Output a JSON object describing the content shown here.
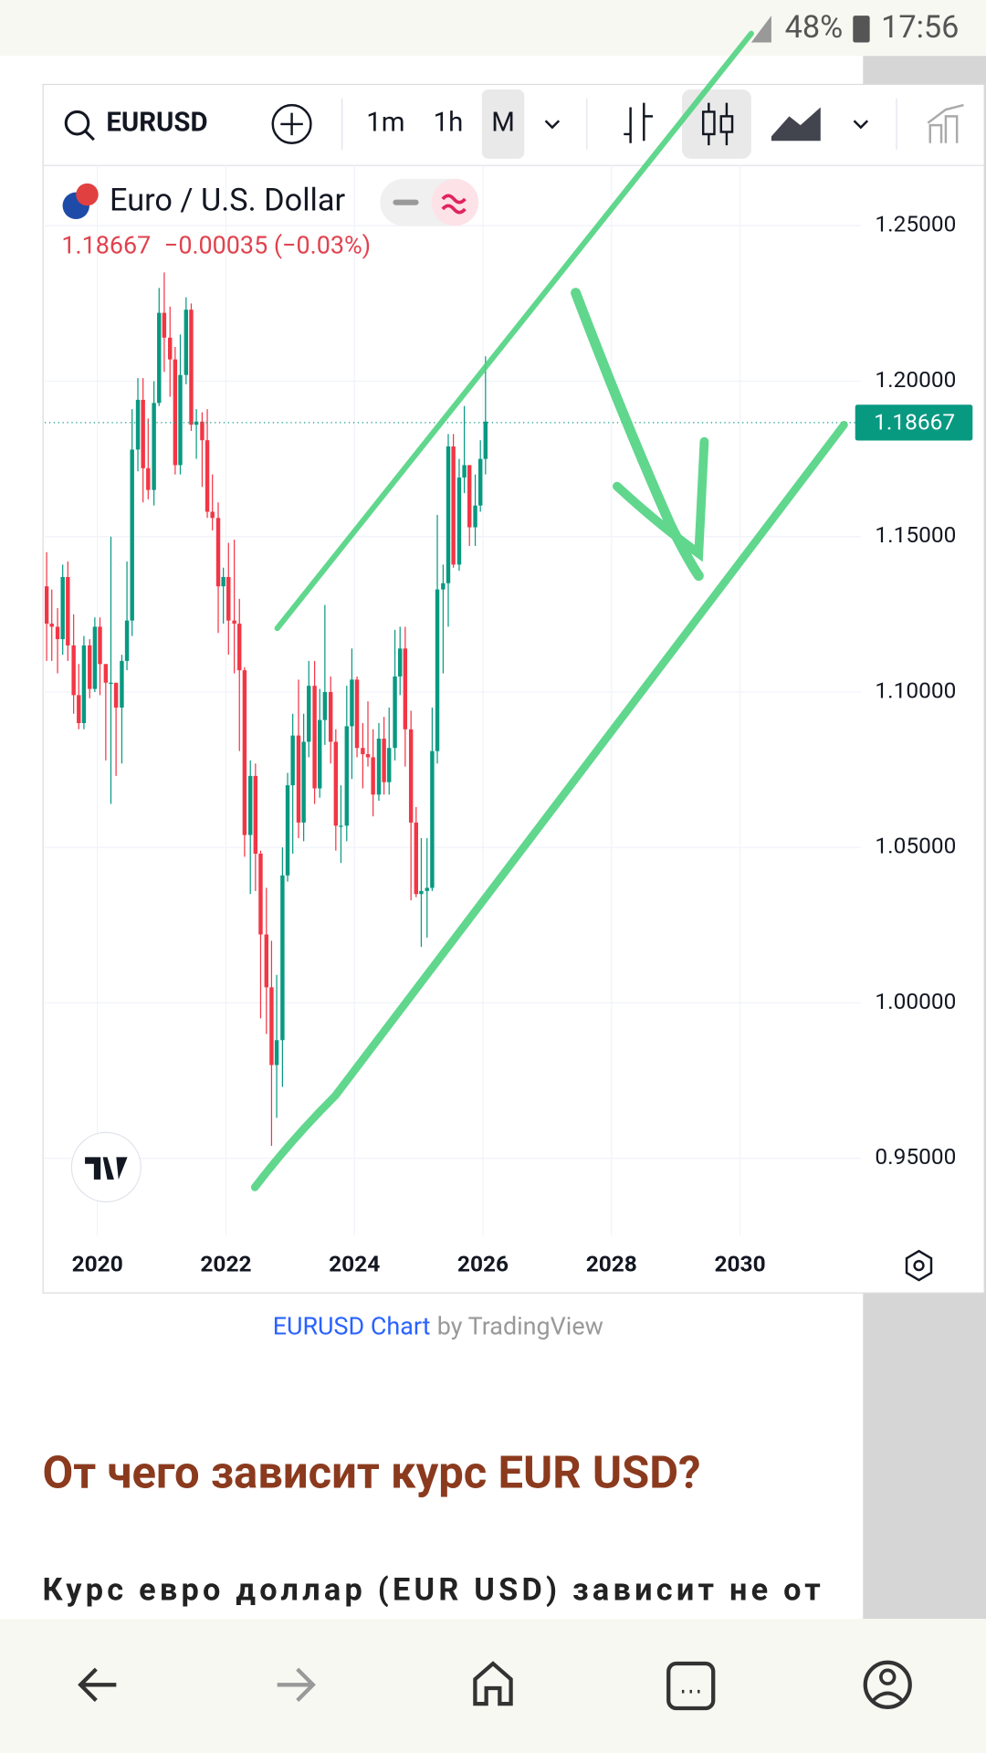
{
  "status_bar": {
    "battery": "48%",
    "time": "17:56"
  },
  "toolbar": {
    "symbol": "EURUSD",
    "intervals": [
      "1m",
      "1h",
      "M"
    ]
  },
  "chart_data": {
    "type": "candlestick",
    "title": "Euro / U.S. Dollar",
    "last": 1.18667,
    "change": "−0.00035 (−0.03%)",
    "up_color": "#089981",
    "down_color": "#f23645",
    "grid": true,
    "xlim": [
      2019.18,
      2031.88
    ],
    "xticks": [
      2020,
      2022,
      2024,
      2026,
      2028,
      2030
    ],
    "ylim": [
      0.9252,
      1.2694
    ],
    "yticks": [
      {
        "value": 0.95,
        "label": "0.95000"
      },
      {
        "value": 1.0,
        "label": "1.00000"
      },
      {
        "value": 1.05,
        "label": "1.05000"
      },
      {
        "value": 1.1,
        "label": "1.10000"
      },
      {
        "value": 1.15,
        "label": "1.15000"
      },
      {
        "value": 1.2,
        "label": "1.20000"
      },
      {
        "value": 1.25,
        "label": "1.25000"
      }
    ],
    "x": [
      2019.21,
      2019.29,
      2019.38,
      2019.46,
      2019.54,
      2019.63,
      2019.71,
      2019.79,
      2019.88,
      2019.96,
      2020.04,
      2020.13,
      2020.21,
      2020.29,
      2020.38,
      2020.46,
      2020.54,
      2020.63,
      2020.71,
      2020.79,
      2020.88,
      2020.96,
      2021.04,
      2021.13,
      2021.21,
      2021.29,
      2021.38,
      2021.46,
      2021.54,
      2021.63,
      2021.71,
      2021.79,
      2021.88,
      2021.96,
      2022.04,
      2022.13,
      2022.21,
      2022.29,
      2022.38,
      2022.46,
      2022.54,
      2022.63,
      2022.71,
      2022.79,
      2022.88,
      2022.96,
      2023.04,
      2023.13,
      2023.21,
      2023.29,
      2023.38,
      2023.46,
      2023.54,
      2023.63,
      2023.71,
      2023.79,
      2023.88,
      2023.96,
      2024.04,
      2024.13,
      2024.21,
      2024.29,
      2024.38,
      2024.46,
      2024.54,
      2024.63,
      2024.71,
      2024.79,
      2024.88,
      2024.96,
      2025.04,
      2025.13,
      2025.21,
      2025.29,
      2025.38,
      2025.46,
      2025.54,
      2025.63,
      2025.71,
      2025.79,
      2025.88,
      2025.96,
      2026.04
    ],
    "open": [
      1.134,
      1.122,
      1.121,
      1.117,
      1.137,
      1.115,
      1.099,
      1.09,
      1.115,
      1.101,
      1.121,
      1.109,
      1.103,
      1.103,
      1.095,
      1.11,
      1.123,
      1.178,
      1.194,
      1.172,
      1.165,
      1.193,
      1.222,
      1.214,
      1.207,
      1.173,
      1.202,
      1.223,
      1.186,
      1.187,
      1.181,
      1.158,
      1.156,
      1.134,
      1.137,
      1.123,
      1.122,
      1.107,
      1.054,
      1.073,
      1.048,
      1.022,
      1.005,
      0.98,
      0.988,
      1.041,
      1.07,
      1.086,
      1.058,
      1.084,
      1.102,
      1.069,
      1.091,
      1.1,
      1.084,
      1.057,
      1.057,
      1.089,
      1.104,
      1.082,
      1.08,
      1.079,
      1.067,
      1.085,
      1.071,
      1.082,
      1.105,
      1.114,
      1.088,
      1.058,
      1.035,
      1.036,
      1.037,
      1.081,
      1.133,
      1.135,
      1.179,
      1.141,
      1.169,
      1.173,
      1.153,
      1.16,
      1.175
    ],
    "high": [
      1.145,
      1.133,
      1.127,
      1.141,
      1.142,
      1.125,
      1.109,
      1.118,
      1.117,
      1.124,
      1.124,
      1.109,
      1.15,
      1.102,
      1.112,
      1.142,
      1.191,
      1.201,
      1.201,
      1.188,
      1.2,
      1.23,
      1.235,
      1.224,
      1.211,
      1.215,
      1.227,
      1.225,
      1.191,
      1.19,
      1.191,
      1.17,
      1.161,
      1.14,
      1.148,
      1.149,
      1.13,
      1.108,
      1.078,
      1.077,
      1.049,
      1.037,
      1.02,
      1.009,
      1.05,
      1.074,
      1.093,
      1.104,
      1.093,
      1.11,
      1.11,
      1.101,
      1.128,
      1.105,
      1.088,
      1.07,
      1.102,
      1.114,
      1.105,
      1.09,
      1.097,
      1.088,
      1.09,
      1.092,
      1.095,
      1.12,
      1.121,
      1.121,
      1.094,
      1.063,
      1.053,
      1.053,
      1.095,
      1.157,
      1.141,
      1.183,
      1.183,
      1.175,
      1.192,
      1.173,
      1.17,
      1.181,
      1.208
    ],
    "low": [
      1.11,
      1.11,
      1.106,
      1.112,
      1.11,
      1.093,
      1.088,
      1.088,
      1.098,
      1.1,
      1.099,
      1.078,
      1.064,
      1.073,
      1.077,
      1.107,
      1.118,
      1.171,
      1.161,
      1.162,
      1.16,
      1.192,
      1.203,
      1.195,
      1.17,
      1.17,
      1.199,
      1.184,
      1.175,
      1.166,
      1.156,
      1.152,
      1.119,
      1.122,
      1.112,
      1.106,
      1.081,
      1.047,
      1.035,
      1.036,
      0.995,
      0.99,
      0.954,
      0.963,
      0.973,
      1.039,
      1.048,
      1.053,
      1.052,
      1.079,
      1.064,
      1.066,
      1.083,
      1.077,
      1.049,
      1.045,
      1.052,
      1.072,
      1.079,
      1.069,
      1.076,
      1.06,
      1.065,
      1.067,
      1.067,
      1.078,
      1.099,
      1.076,
      1.033,
      1.034,
      1.018,
      1.021,
      1.036,
      1.077,
      1.106,
      1.121,
      1.14,
      1.139,
      1.164,
      1.147,
      1.147,
      1.158,
      1.17
    ],
    "close": [
      1.122,
      1.121,
      1.117,
      1.137,
      1.115,
      1.099,
      1.09,
      1.115,
      1.101,
      1.121,
      1.109,
      1.103,
      1.103,
      1.095,
      1.11,
      1.123,
      1.178,
      1.194,
      1.172,
      1.165,
      1.193,
      1.222,
      1.214,
      1.207,
      1.173,
      1.202,
      1.223,
      1.186,
      1.187,
      1.181,
      1.158,
      1.156,
      1.134,
      1.137,
      1.123,
      1.122,
      1.107,
      1.054,
      1.073,
      1.048,
      1.022,
      1.005,
      0.98,
      0.988,
      1.041,
      1.07,
      1.086,
      1.058,
      1.084,
      1.102,
      1.069,
      1.091,
      1.1,
      1.084,
      1.057,
      1.057,
      1.089,
      1.104,
      1.082,
      1.08,
      1.079,
      1.067,
      1.085,
      1.071,
      1.082,
      1.105,
      1.114,
      1.088,
      1.058,
      1.035,
      1.036,
      1.037,
      1.081,
      1.133,
      1.135,
      1.179,
      1.141,
      1.169,
      1.173,
      1.153,
      1.16,
      1.175,
      1.187
    ]
  },
  "caption": {
    "link": "EURUSD Chart",
    "by": "by TradingView"
  },
  "article": {
    "heading": "От чего зависит курс EUR USD?",
    "paragraph": "Курс евро доллар (EUR USD) зависит не от"
  }
}
